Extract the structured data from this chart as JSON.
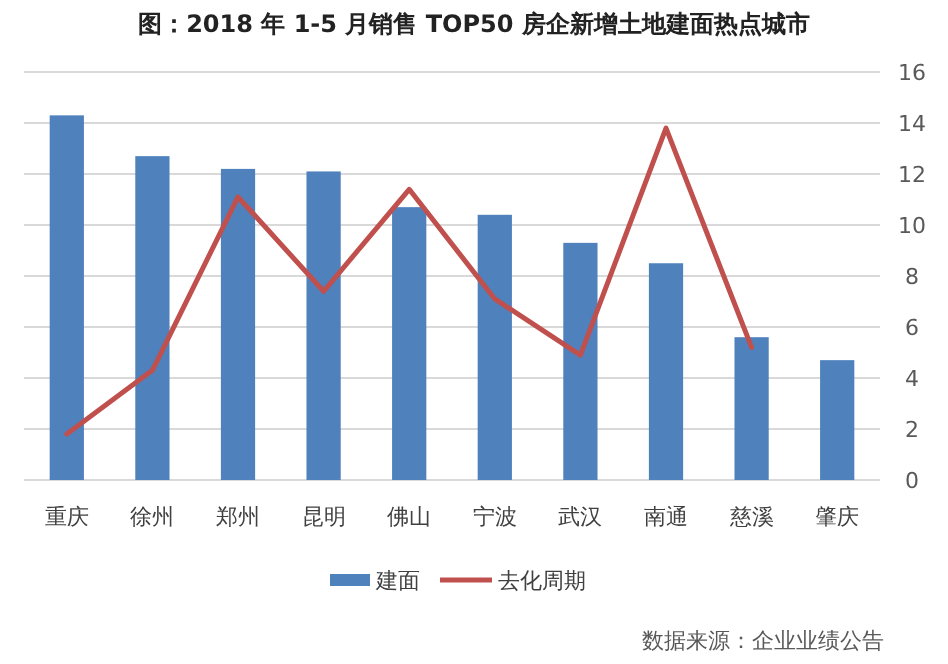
{
  "chart_data": {
    "type": "bar",
    "title": "图：2018 年 1-5 月销售 TOP50 房企新增土地建面热点城市",
    "categories": [
      "重庆",
      "徐州",
      "郑州",
      "昆明",
      "佛山",
      "宁波",
      "武汉",
      "南通",
      "慈溪",
      "肇庆"
    ],
    "series": [
      {
        "name": "建面",
        "color": "#4f81bd",
        "values": [
          14.3,
          12.7,
          12.2,
          12.1,
          10.7,
          10.4,
          9.3,
          8.5,
          5.6,
          4.7
        ]
      },
      {
        "name": "去化周期",
        "type": "line",
        "color": "#c0504d",
        "values": [
          1.8,
          4.3,
          11.1,
          7.4,
          11.4,
          7.1,
          4.9,
          13.8,
          5.2,
          null
        ]
      }
    ],
    "ylim": [
      0,
      16
    ],
    "yticks": [
      0,
      2,
      4,
      6,
      8,
      10,
      12,
      14,
      16
    ],
    "grid": "y",
    "legend": "bottom",
    "annotations": [
      "数据来源：企业业绩公告"
    ]
  }
}
